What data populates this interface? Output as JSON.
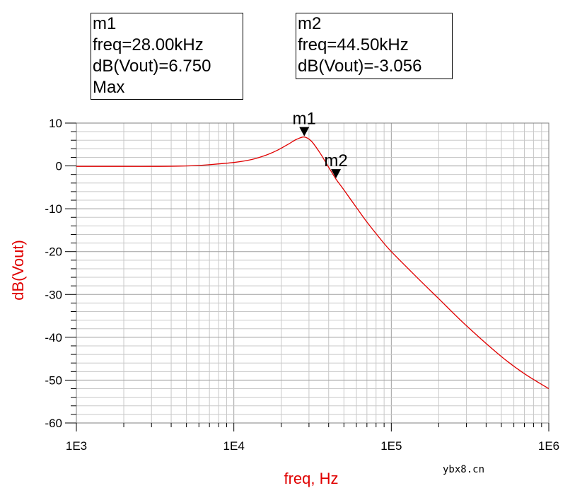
{
  "markers": [
    {
      "name": "m1",
      "freq_text": "freq=28.00kHz",
      "value_text": "dB(Vout)=6.750",
      "note": "Max",
      "freq": 28000,
      "db": 6.75
    },
    {
      "name": "m2",
      "freq_text": "freq=44.50kHz",
      "value_text": "dB(Vout)=-3.056",
      "freq": 44500,
      "db": -3.056
    }
  ],
  "watermark": "ybx8.cn",
  "colors": {
    "trace": "#e00000",
    "axis_label": "#e00000",
    "grid": "#c8c8c8",
    "text": "#000000"
  },
  "chart_data": {
    "type": "line",
    "title": "",
    "xlabel": "freq, Hz",
    "ylabel": "dB(Vout)",
    "xscale": "log",
    "xlim": [
      1000,
      1000000
    ],
    "ylim": [
      -60,
      10
    ],
    "xtick_labels": [
      "1E3",
      "1E4",
      "1E5",
      "1E6"
    ],
    "xtick_values": [
      1000,
      10000,
      100000,
      1000000
    ],
    "ytick_values": [
      10,
      0,
      -10,
      -20,
      -30,
      -40,
      -50,
      -60
    ],
    "ytick_labels": [
      "10",
      "0",
      "-10",
      "-20",
      "-30",
      "-40",
      "-50",
      "-60"
    ],
    "grid": true,
    "series": [
      {
        "name": "dB(Vout)",
        "x": [
          1000,
          2000,
          3000,
          5000,
          7000,
          10000,
          13000,
          16000,
          19000,
          22000,
          25000,
          28000,
          31000,
          35000,
          40000,
          44500,
          50000,
          60000,
          70000,
          85000,
          100000,
          150000,
          200000,
          300000,
          500000,
          700000,
          1000000
        ],
        "y": [
          -0.1,
          -0.1,
          -0.1,
          0.0,
          0.3,
          0.8,
          1.5,
          2.5,
          3.7,
          5.0,
          6.2,
          6.75,
          5.8,
          3.2,
          -0.3,
          -3.056,
          -5.6,
          -9.7,
          -13.1,
          -17.0,
          -20.0,
          -26.5,
          -31.0,
          -37.3,
          -44.5,
          -48.5,
          -52.0
        ]
      }
    ]
  }
}
